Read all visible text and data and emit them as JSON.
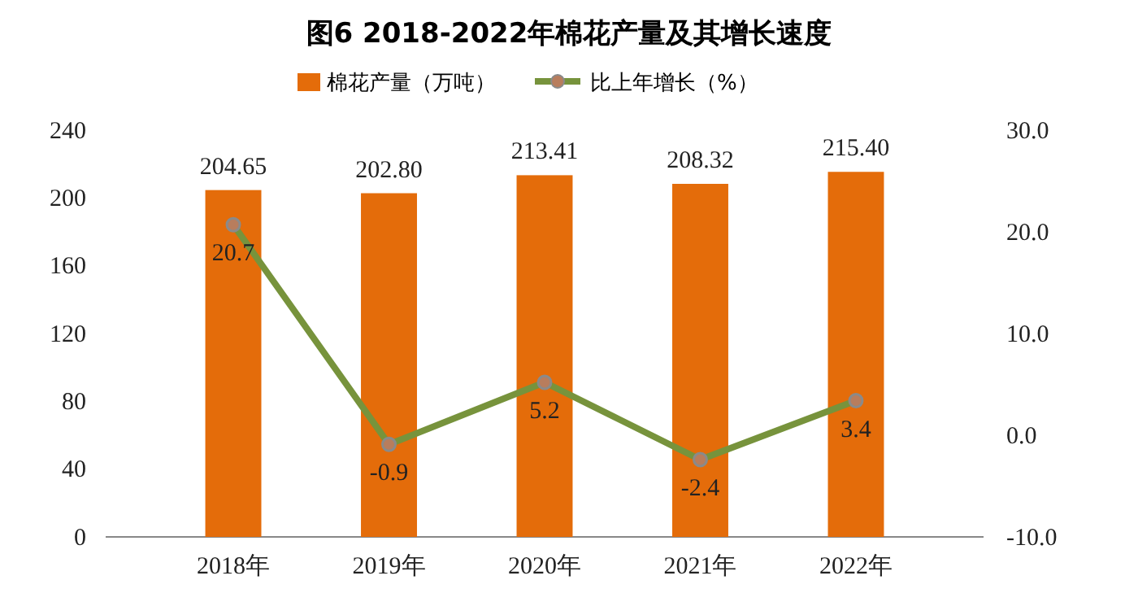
{
  "chart_data": {
    "type": "bar",
    "title": "图6  2018-2022年棉花产量及其增长速度",
    "categories": [
      "2018年",
      "2019年",
      "2020年",
      "2021年",
      "2022年"
    ],
    "series": [
      {
        "name": "棉花产量（万吨）",
        "color": "#e46c0a",
        "values": [
          204.65,
          202.8,
          213.41,
          208.32,
          215.4
        ],
        "value_labels": [
          "204.65",
          "202.80",
          "213.41",
          "208.32",
          "215.40"
        ]
      },
      {
        "name": "比上年增长（%）",
        "type": "line",
        "axis": "y2",
        "color": "#77933c",
        "values": [
          20.7,
          -0.9,
          5.2,
          -2.4,
          3.4
        ],
        "value_labels": [
          "20.7",
          "-0.9",
          "5.2",
          "-2.4",
          "3.4"
        ]
      }
    ],
    "ylim": [
      0,
      240
    ],
    "yticks": [
      0,
      40,
      80,
      120,
      160,
      200,
      240
    ],
    "y2lim": [
      -10,
      30
    ],
    "y2ticks": [
      {
        "value": -10,
        "label": "-10.0"
      },
      {
        "value": 0,
        "label": "0.0"
      },
      {
        "value": 10,
        "label": "10.0"
      },
      {
        "value": 20,
        "label": "20.0"
      },
      {
        "value": 30,
        "label": "30.0"
      }
    ],
    "grid": false,
    "legend": "top",
    "marker": "circle",
    "line_style": "solid"
  }
}
